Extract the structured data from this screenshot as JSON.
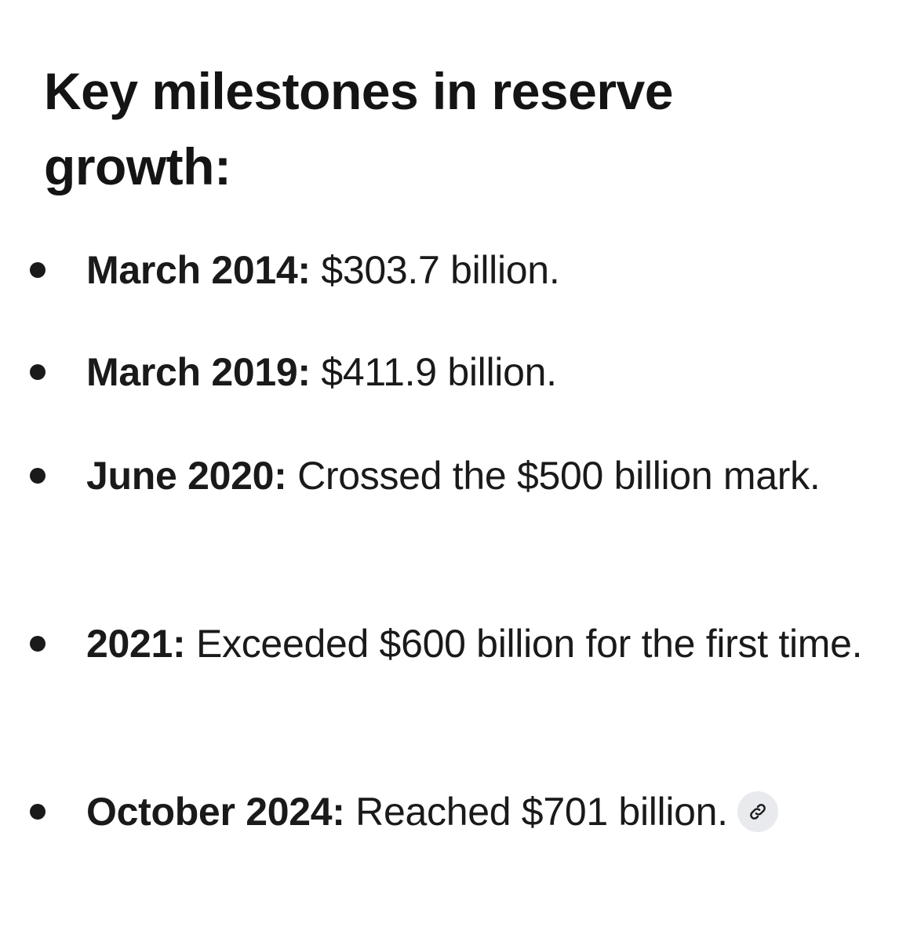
{
  "heading": "Key milestones in reserve growth:",
  "milestones": [
    {
      "label": "March 2014:",
      "text": " $303.7 billion."
    },
    {
      "label": "March 2019:",
      "text": " $411.9 billion."
    },
    {
      "label": "June 2020:",
      "text": " Crossed the $500 billion mark."
    },
    {
      "label": "2021:",
      "text": " Exceeded $600 billion for the first time."
    },
    {
      "label": "October 2024:",
      "text": " Reached $701 billion."
    }
  ],
  "icons": {
    "bullet": "bullet-dot",
    "source_link": "link-icon"
  },
  "colors": {
    "text": "#1a1a1a",
    "chip_background": "#e9eaee",
    "background": "#ffffff"
  }
}
